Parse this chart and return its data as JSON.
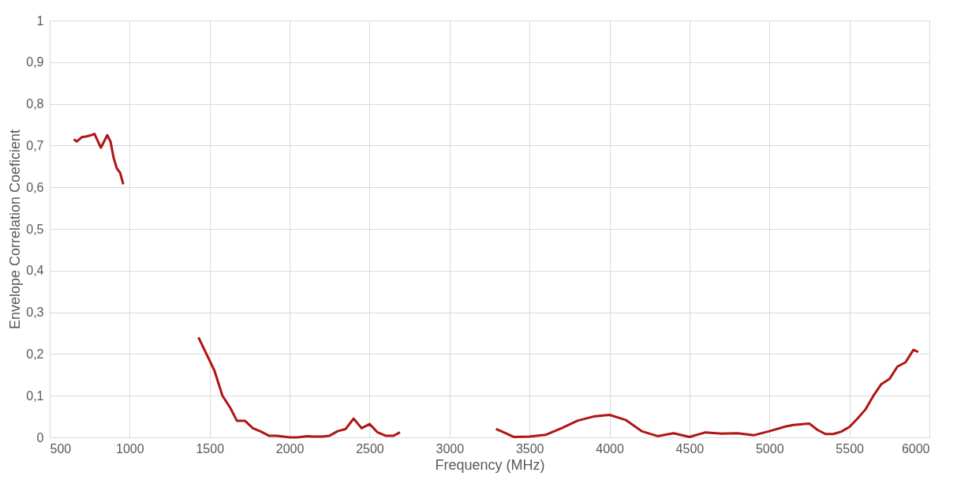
{
  "chart_data": {
    "type": "line",
    "xlabel": "Frequency (MHz)",
    "ylabel": "Envelope Correlation Coeficient",
    "xlim": [
      500,
      6000
    ],
    "xticks": [
      500,
      1000,
      1500,
      2000,
      2500,
      3000,
      3500,
      4000,
      4500,
      5000,
      5500,
      6000
    ],
    "ylim": [
      0,
      1
    ],
    "yticks": [
      0,
      {
        "value": 0.1,
        "label": "0,1"
      },
      {
        "value": 0.2,
        "label": "0,2"
      },
      {
        "value": 0.3,
        "label": "0,3"
      },
      {
        "value": 0.4,
        "label": "0,4"
      },
      {
        "value": 0.5,
        "label": "0,5"
      },
      {
        "value": 0.6,
        "label": "0,6"
      },
      {
        "value": 0.7,
        "label": "0,7"
      },
      {
        "value": 0.8,
        "label": "0,8"
      },
      {
        "value": 0.9,
        "label": "0,9"
      },
      1
    ],
    "grid": true,
    "line_style": "solid",
    "marker": "none",
    "series": [
      {
        "color": "#b01515",
        "x": [
          650,
          670,
          700,
          730,
          760,
          780,
          820,
          860,
          880,
          900,
          920,
          940,
          960,
          1200,
          1430,
          1480,
          1530,
          1580,
          1630,
          1670,
          1720,
          1770,
          1820,
          1870,
          1920,
          2000,
          2050,
          2110,
          2150,
          2200,
          2250,
          2300,
          2350,
          2400,
          2450,
          2500,
          2550,
          2600,
          2650,
          2690,
          3000,
          3290,
          3350,
          3400,
          3500,
          3600,
          3700,
          3800,
          3900,
          4000,
          4100,
          4200,
          4300,
          4400,
          4500,
          4600,
          4700,
          4800,
          4900,
          5000,
          5100,
          5150,
          5250,
          5300,
          5350,
          5400,
          5450,
          5500,
          5550,
          5600,
          5650,
          5700,
          5750,
          5800,
          5850,
          5900,
          5930
        ],
        "values": [
          0.715,
          0.71,
          0.72,
          0.722,
          0.725,
          0.728,
          0.695,
          0.725,
          0.71,
          0.67,
          0.645,
          0.635,
          0.607,
          null,
          0.24,
          0.2,
          0.16,
          0.1,
          0.07,
          0.04,
          0.04,
          0.022,
          0.014,
          0.004,
          0.004,
          0.0,
          0.0,
          0.003,
          0.002,
          0.002,
          0.004,
          0.015,
          0.02,
          0.045,
          0.022,
          0.032,
          0.012,
          0.004,
          0.004,
          0.012,
          null,
          0.02,
          0.01,
          0.001,
          0.002,
          0.006,
          0.022,
          0.04,
          0.05,
          0.054,
          0.042,
          0.015,
          0.003,
          0.01,
          0.001,
          0.012,
          0.009,
          0.01,
          0.005,
          0.015,
          0.026,
          0.03,
          0.033,
          0.018,
          0.008,
          0.008,
          0.014,
          0.025,
          0.045,
          0.067,
          0.1,
          0.128,
          0.14,
          0.17,
          0.18,
          0.21,
          0.205
        ]
      }
    ]
  }
}
